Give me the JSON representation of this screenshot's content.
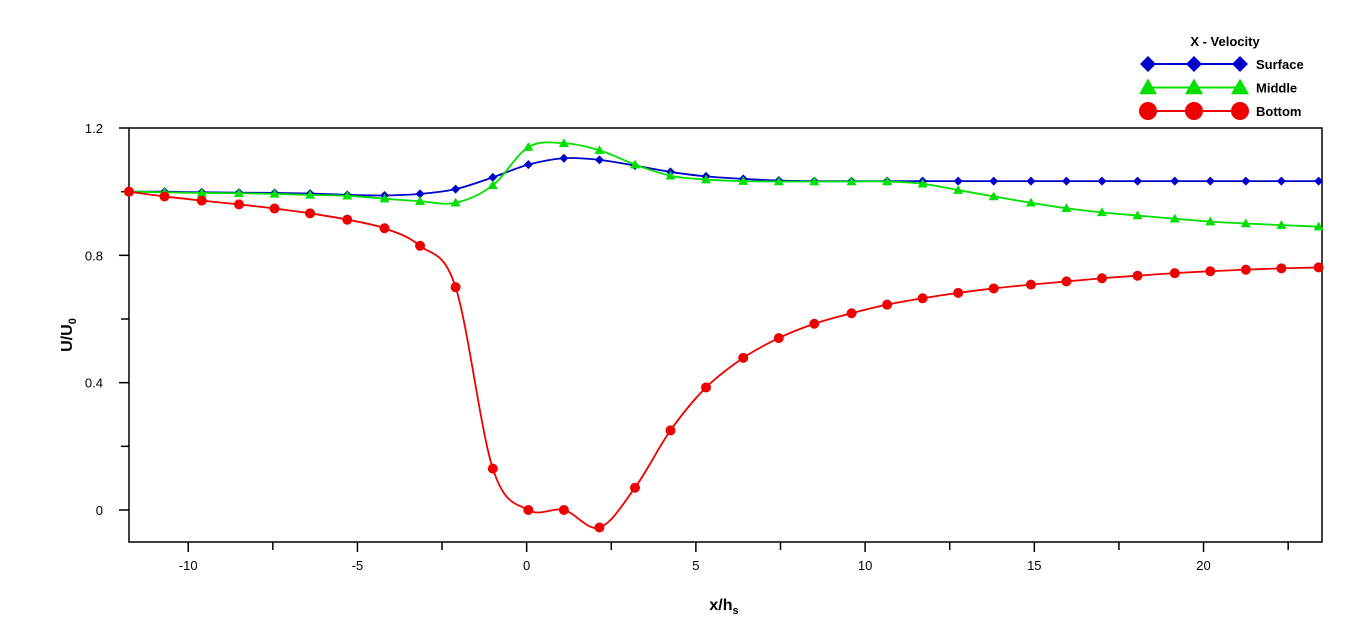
{
  "chart_data": {
    "type": "line",
    "xlabel": "x/h",
    "xlabel_sub": "s",
    "ylabel": "U/U",
    "ylabel_sub": "0",
    "xlim": [
      -11.75,
      23.5
    ],
    "ylim": [
      -0.1,
      1.2
    ],
    "x_ticks": [
      -10,
      -5,
      0,
      5,
      10,
      15,
      20
    ],
    "y_ticks": [
      0,
      0.4,
      0.8,
      1.2
    ],
    "x_tick_labels": [
      "-10",
      "-5",
      "0",
      "5",
      "10",
      "15",
      "20"
    ],
    "y_tick_labels": [
      "0",
      "0.4",
      "0.8",
      "1.2"
    ],
    "grid": false,
    "legend": {
      "title": "X - Velocity",
      "position": "top-right"
    },
    "series": [
      {
        "name": "Surface",
        "color": "#0000cc",
        "marker": "diamond",
        "x": [
          -11.75,
          -10.7,
          -9.6,
          -8.5,
          -7.45,
          -6.4,
          -5.3,
          -4.2,
          -3.15,
          -2.1,
          -1.0,
          0.05,
          1.1,
          2.15,
          3.2,
          4.25,
          5.3,
          6.4,
          7.45,
          8.5,
          9.6,
          10.65,
          11.7,
          12.75,
          13.8,
          14.9,
          15.95,
          17.0,
          18.05,
          19.15,
          20.2,
          21.25,
          22.3,
          23.4
        ],
        "y": [
          1.0,
          1.0,
          0.998,
          0.997,
          0.996,
          0.994,
          0.99,
          0.988,
          0.993,
          1.008,
          1.045,
          1.085,
          1.105,
          1.1,
          1.082,
          1.062,
          1.048,
          1.04,
          1.035,
          1.033,
          1.033,
          1.033,
          1.033,
          1.033,
          1.033,
          1.033,
          1.033,
          1.033,
          1.033,
          1.033,
          1.033,
          1.033,
          1.033,
          1.033
        ]
      },
      {
        "name": "Middle",
        "color": "#00e000",
        "marker": "triangle",
        "x": [
          -11.75,
          -10.7,
          -9.6,
          -8.5,
          -7.45,
          -6.4,
          -5.3,
          -4.2,
          -3.15,
          -2.1,
          -1.0,
          0.05,
          1.1,
          2.15,
          3.2,
          4.25,
          5.3,
          6.4,
          7.45,
          8.5,
          9.6,
          10.65,
          11.7,
          12.75,
          13.8,
          14.9,
          15.95,
          17.0,
          18.05,
          19.15,
          20.2,
          21.25,
          22.3,
          23.4
        ],
        "y": [
          1.0,
          0.998,
          0.996,
          0.995,
          0.993,
          0.99,
          0.987,
          0.978,
          0.97,
          0.965,
          1.02,
          1.14,
          1.152,
          1.13,
          1.085,
          1.05,
          1.038,
          1.033,
          1.032,
          1.032,
          1.032,
          1.032,
          1.025,
          1.005,
          0.985,
          0.965,
          0.948,
          0.935,
          0.925,
          0.915,
          0.906,
          0.9,
          0.895,
          0.89
        ]
      },
      {
        "name": "Bottom",
        "color": "#ee0000",
        "marker": "circle",
        "x": [
          -11.75,
          -10.7,
          -9.6,
          -8.5,
          -7.45,
          -6.4,
          -5.3,
          -4.2,
          -3.15,
          -2.1,
          -1.0,
          0.05,
          1.1,
          2.15,
          3.2,
          4.25,
          5.3,
          6.4,
          7.45,
          8.5,
          9.6,
          10.65,
          11.7,
          12.75,
          13.8,
          14.9,
          15.95,
          17.0,
          18.05,
          19.15,
          20.2,
          21.25,
          22.3,
          23.4
        ],
        "y": [
          1.0,
          0.985,
          0.972,
          0.96,
          0.947,
          0.932,
          0.912,
          0.885,
          0.83,
          0.7,
          0.13,
          0.0,
          0.0,
          -0.055,
          0.07,
          0.25,
          0.385,
          0.478,
          0.54,
          0.585,
          0.618,
          0.645,
          0.665,
          0.682,
          0.696,
          0.708,
          0.718,
          0.728,
          0.736,
          0.744,
          0.75,
          0.755,
          0.759,
          0.762
        ]
      }
    ]
  }
}
